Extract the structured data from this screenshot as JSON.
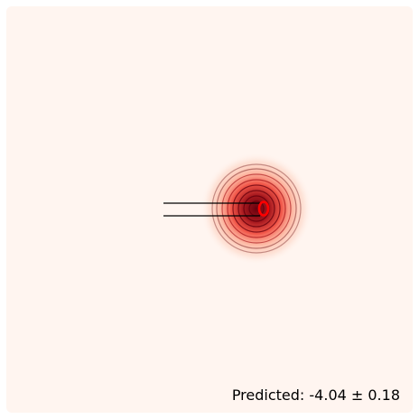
{
  "prediction_text": "Predicted: -4.04 ± 0.18",
  "colors": {
    "background": "#fff5f0",
    "contour_dark": "#67000d",
    "contour_mid": "#cb181d",
    "contour_light": "#fb6a4a",
    "marker": "#ff0000",
    "lines": "#000000"
  }
}
